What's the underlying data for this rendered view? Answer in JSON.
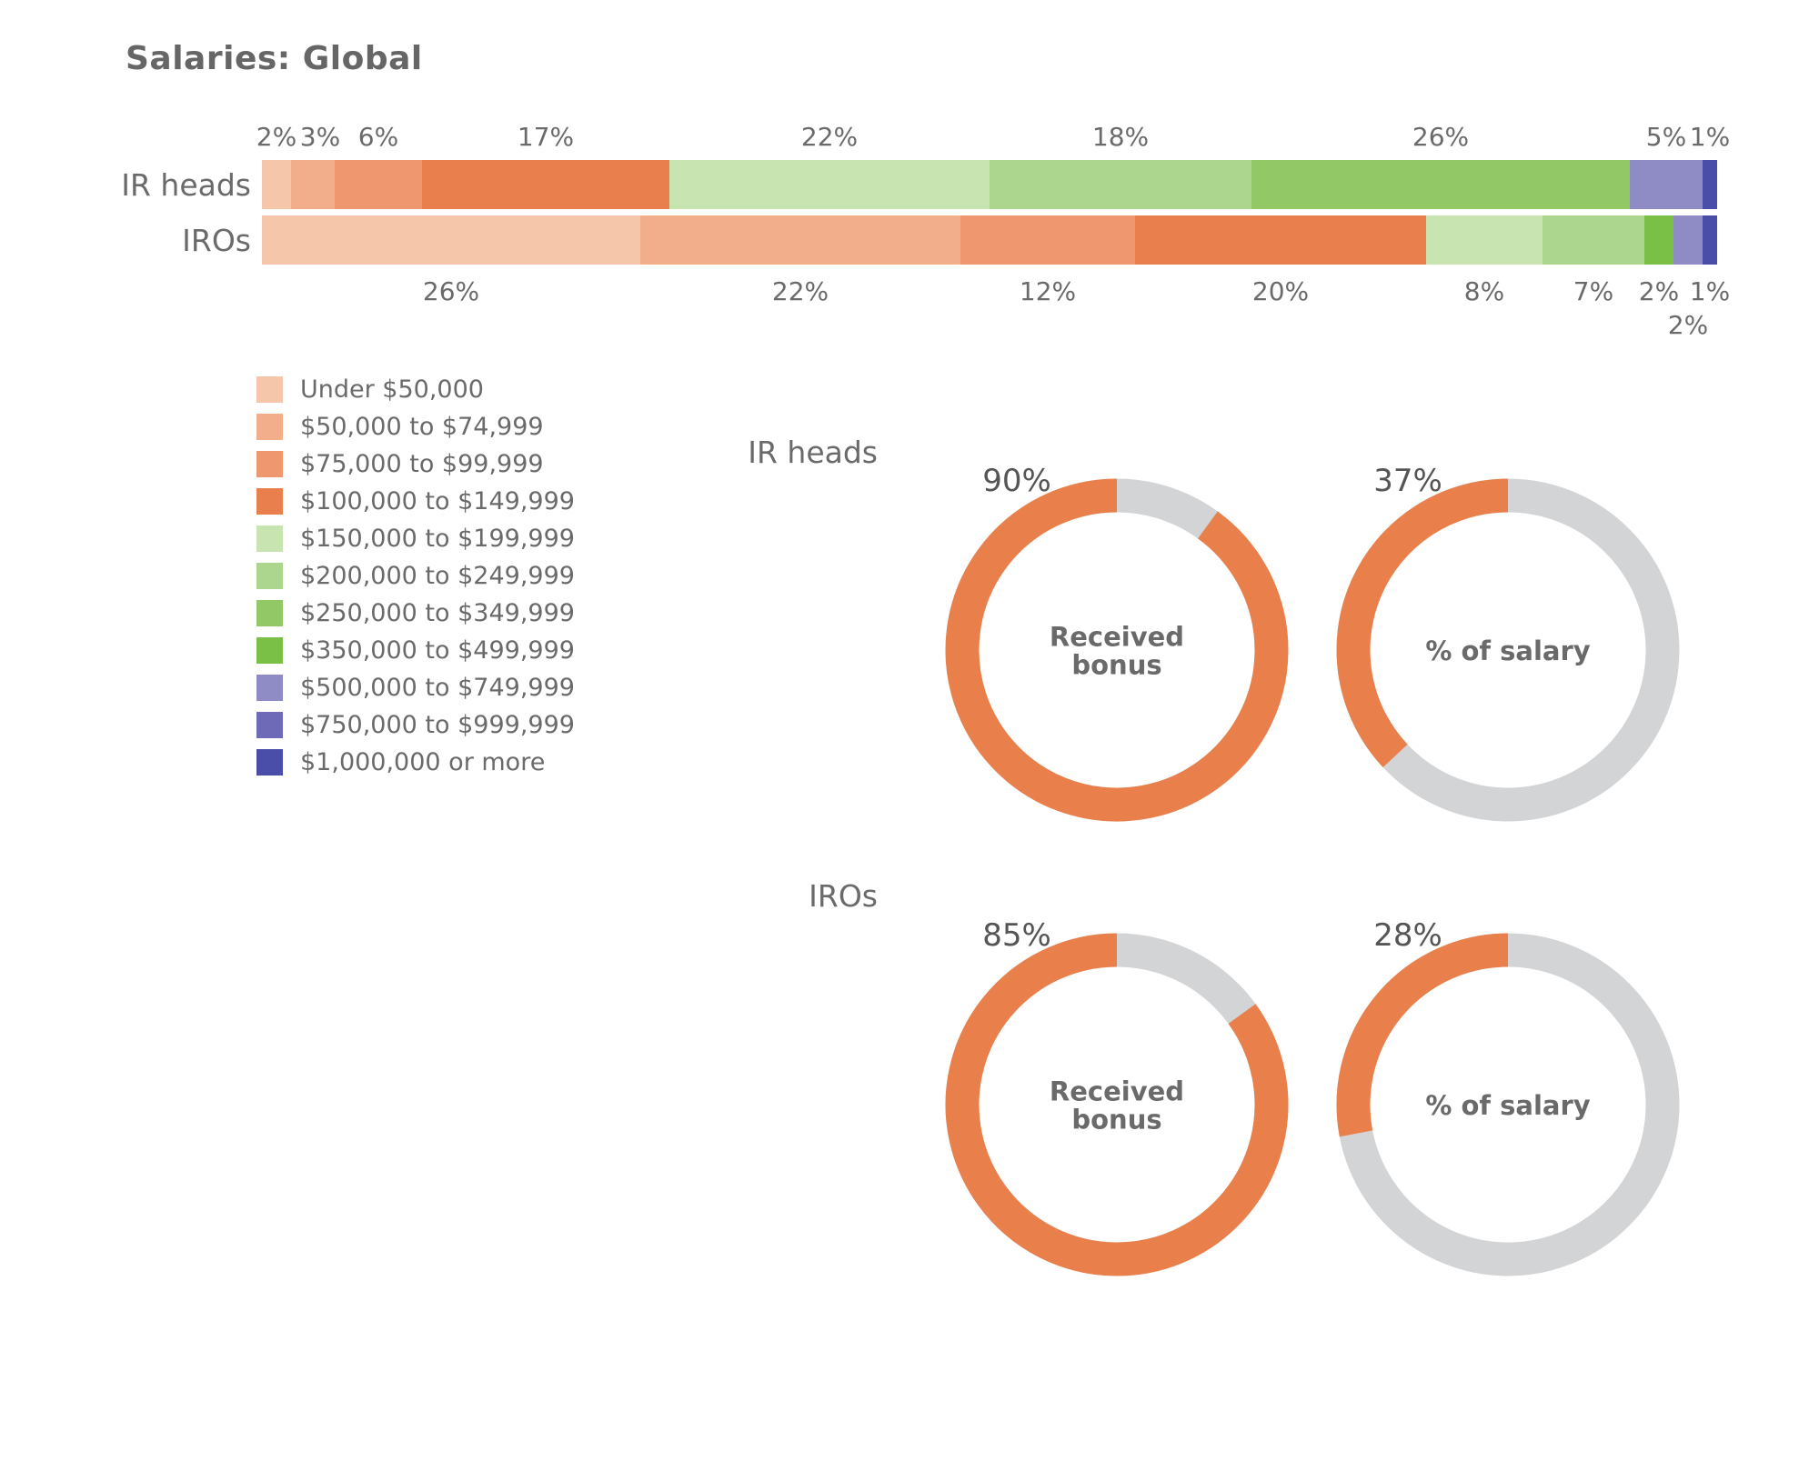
{
  "title": "Salaries: Global",
  "chart_data": [
    {
      "type": "bar",
      "orientation": "horizontal-stacked",
      "title": "Salaries: Global",
      "categories": [
        "IR heads",
        "IROs"
      ],
      "legend_position": "left",
      "series": [
        {
          "name": "Under $50,000",
          "color": "#f5c6a9",
          "values": [
            2,
            26
          ]
        },
        {
          "name": "$50,000 to $74,999",
          "color": "#f2ad8a",
          "values": [
            3,
            22
          ]
        },
        {
          "name": "$75,000 to $99,999",
          "color": "#ef9870",
          "values": [
            6,
            12
          ]
        },
        {
          "name": "$100,000 to $149,999",
          "color": "#e97f4c",
          "values": [
            17,
            20
          ]
        },
        {
          "name": "$150,000 to $199,999",
          "color": "#c8e4b0",
          "values": [
            22,
            8
          ]
        },
        {
          "name": "$200,000 to $249,999",
          "color": "#acd58d",
          "values": [
            18,
            7
          ]
        },
        {
          "name": "$250,000 to $349,999",
          "color": "#92c866",
          "values": [
            26,
            0
          ]
        },
        {
          "name": "$350,000 to $499,999",
          "color": "#7abf46",
          "values": [
            0,
            2
          ]
        },
        {
          "name": "$500,000 to $749,999",
          "color": "#8e8bc5",
          "values": [
            5,
            2
          ]
        },
        {
          "name": "$750,000 to $999,999",
          "color": "#6f6ab8",
          "values": [
            0,
            0
          ]
        },
        {
          "name": "$1,000,000 or more",
          "color": "#4a4ea8",
          "values": [
            1,
            1
          ]
        }
      ],
      "data_labels": [
        [
          "2%",
          "3%",
          "6%",
          "17%",
          "22%",
          "18%",
          "26%",
          "",
          "5%",
          "",
          "1%"
        ],
        [
          "26%",
          "22%",
          "12%",
          "20%",
          "8%",
          "7%",
          "",
          "2%",
          "2%",
          "",
          "1%"
        ]
      ]
    },
    {
      "type": "pie",
      "variant": "donut",
      "groups": [
        {
          "label": "IR heads",
          "donuts": [
            {
              "label": "Received bonus",
              "value": 90,
              "value_label": "90%"
            },
            {
              "label": "% of salary",
              "value": 37,
              "value_label": "37%"
            }
          ]
        },
        {
          "label": "IROs",
          "donuts": [
            {
              "label": "Received bonus",
              "value": 85,
              "value_label": "85%"
            },
            {
              "label": "% of salary",
              "value": 28,
              "value_label": "28%"
            }
          ]
        }
      ],
      "colors": {
        "filled": "#e9804b",
        "remaining": "#d3d4d6"
      }
    }
  ]
}
